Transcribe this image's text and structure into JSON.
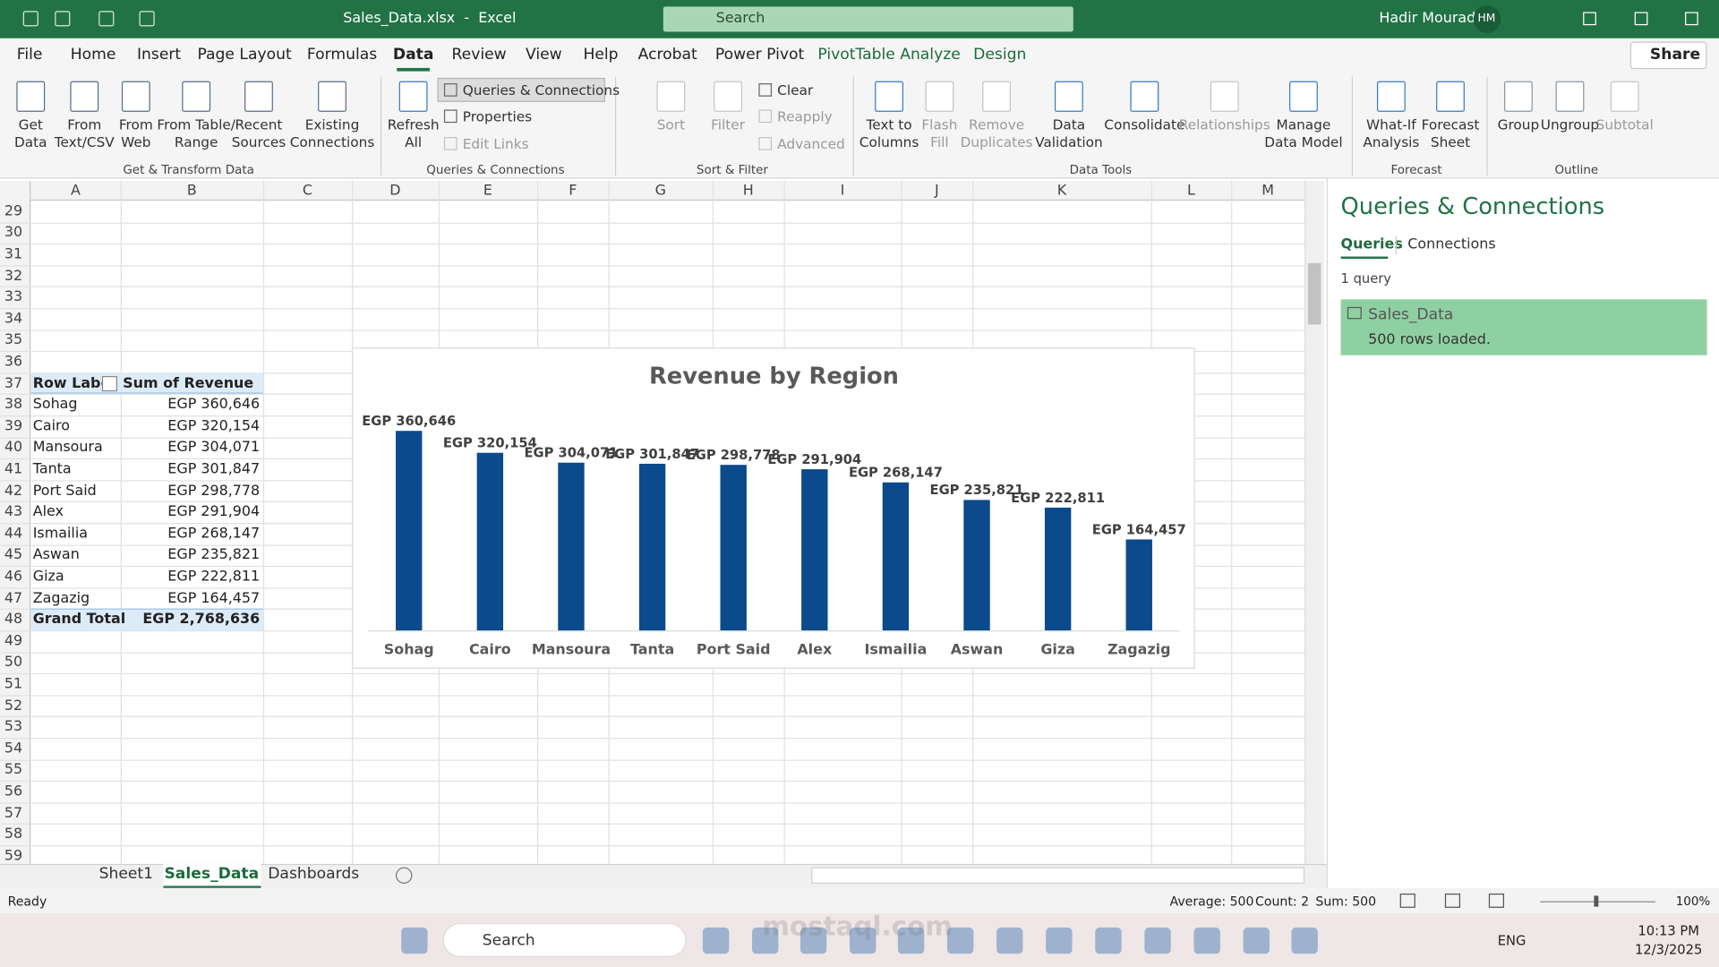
{
  "title_bar": {
    "file": "Sales_Data.xlsx  -  Excel",
    "search": "Search",
    "user": "Hadir Mourad",
    "initials": "HM"
  },
  "ribbon_tabs": [
    "File",
    "Home",
    "Insert",
    "Page Layout",
    "Formulas",
    "Data",
    "Review",
    "View",
    "Help",
    "Acrobat",
    "Power Pivot",
    "PivotTable Analyze",
    "Design"
  ],
  "share": "Share",
  "ribbon_groups": [
    {
      "label": "Get & Transform Data",
      "buttons": [
        "Get\nData",
        "From\nText/CSV",
        "From\nWeb",
        "From Table/\nRange",
        "Recent\nSources",
        "Existing\nConnections"
      ]
    },
    {
      "label": "Queries & Connections",
      "buttons": [
        "Refresh\nAll"
      ],
      "small": [
        "Queries & Connections",
        "Properties",
        "Edit Links"
      ]
    },
    {
      "label": "Sort & Filter",
      "buttons": [
        "Sort",
        "Filter"
      ],
      "small": [
        "Clear",
        "Reapply",
        "Advanced"
      ]
    },
    {
      "label": "Data Tools",
      "buttons": [
        "Text to\nColumns",
        "Flash\nFill",
        "Remove\nDuplicates",
        "Data\nValidation",
        "Consolidate",
        "Relationships",
        "Manage\nData Model"
      ]
    },
    {
      "label": "Forecast",
      "buttons": [
        "What-If\nAnalysis",
        "Forecast\nSheet"
      ]
    },
    {
      "label": "Outline",
      "buttons": [
        "Group",
        "Ungroup",
        "Subtotal"
      ]
    }
  ],
  "columns": [
    "A",
    "B",
    "C",
    "D",
    "E",
    "F",
    "G",
    "H",
    "I",
    "J",
    "K",
    "L",
    "M"
  ],
  "rows": [
    29,
    30,
    31,
    32,
    33,
    34,
    35,
    36,
    37,
    38,
    39,
    40,
    41,
    42,
    43,
    44,
    45,
    46,
    47,
    48,
    49,
    50,
    51,
    52,
    53,
    54,
    55,
    56,
    57,
    58,
    59
  ],
  "pivot": {
    "header": [
      "Row Labels",
      "Sum of Revenue"
    ],
    "rows": [
      [
        "Sohag",
        "EGP 360,646"
      ],
      [
        "Cairo",
        "EGP 320,154"
      ],
      [
        "Mansoura",
        "EGP 304,071"
      ],
      [
        "Tanta",
        "EGP 301,847"
      ],
      [
        "Port Said",
        "EGP 298,778"
      ],
      [
        "Alex",
        "EGP 291,904"
      ],
      [
        "Ismailia",
        "EGP 268,147"
      ],
      [
        "Aswan",
        "EGP 235,821"
      ],
      [
        "Giza",
        "EGP 222,811"
      ],
      [
        "Zagazig",
        "EGP 164,457"
      ]
    ],
    "total": [
      "Grand Total",
      "EGP 2,768,636"
    ]
  },
  "chart_data": {
    "type": "bar",
    "title": "Revenue by Region",
    "categories": [
      "Sohag",
      "Cairo",
      "Mansoura",
      "Tanta",
      "Port Said",
      "Alex",
      "Ismailia",
      "Aswan",
      "Giza",
      "Zagazig"
    ],
    "values": [
      360646,
      320154,
      304071,
      301847,
      298778,
      291904,
      268147,
      235821,
      222811,
      164457
    ],
    "value_labels": [
      "EGP 360,646",
      "EGP 320,154",
      "EGP 304,071",
      "EGP 301,847",
      "EGP 298,778",
      "EGP 291,904",
      "EGP 268,147",
      "EGP 235,821",
      "EGP 222,811",
      "EGP 164,457"
    ],
    "color": "#0b4a8b"
  },
  "queries_pane": {
    "title": "Queries & Connections",
    "tabs": [
      "Queries",
      "Connections"
    ],
    "count": "1 query",
    "query_name": "Sales_Data",
    "query_status": "500 rows loaded."
  },
  "sheet_tabs": [
    "Sheet1",
    "Sales_Data",
    "Dashboards"
  ],
  "status_bar": {
    "mode": "Ready",
    "average": "Average: 500",
    "count": "Count: 2",
    "sum": "Sum: 500",
    "zoom": "100%"
  },
  "taskbar": {
    "search": "Search",
    "language": "ENG",
    "time": "10:13 PM",
    "date": "12/3/2025"
  },
  "watermark": "mostaql.com"
}
